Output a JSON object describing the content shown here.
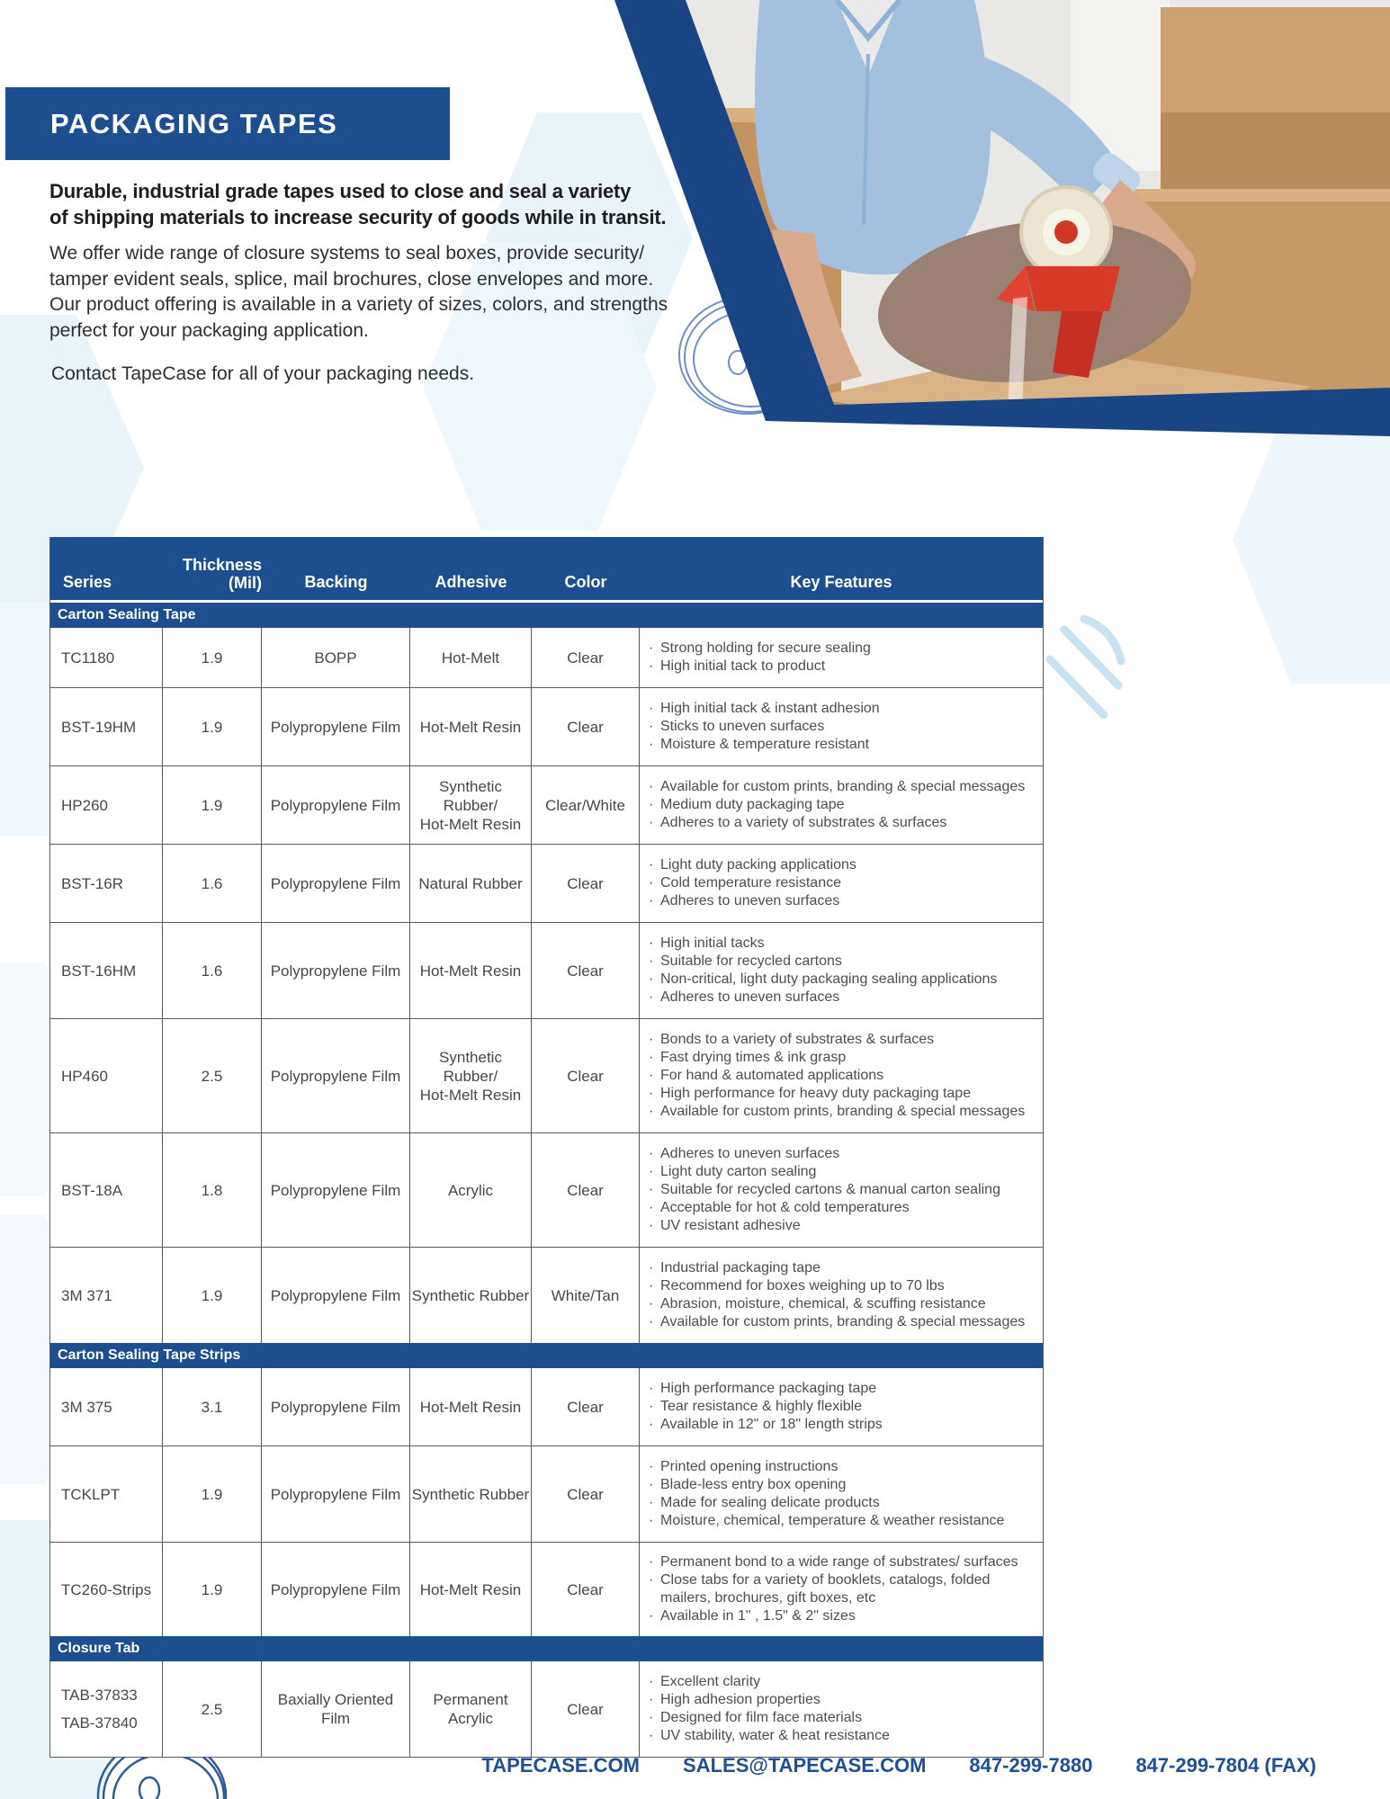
{
  "banner": {
    "title": "PACKAGING TAPES"
  },
  "intro": {
    "bold_lines": [
      "Durable, industrial grade tapes used to close and seal a variety",
      "of shipping materials to increase security of goods while in transit."
    ],
    "body_lines": [
      "We offer wide range of closure systems to seal boxes, provide security/",
      "tamper evident seals, splice, mail brochures, close envelopes and more.",
      "Our product offering is available in a variety of sizes, colors, and strengths",
      "perfect for your packaging application."
    ],
    "contact": "Contact TapeCase for all of your packaging needs."
  },
  "table": {
    "columns": {
      "series": "Series",
      "thickness_line1": "Thickness",
      "thickness_line2": "(Mil)",
      "backing": "Backing",
      "adhesive": "Adhesive",
      "color": "Color",
      "features": "Key Features"
    },
    "sections": [
      {
        "label": "Carton Sealing Tape",
        "rows": [
          {
            "series": [
              "TC1180"
            ],
            "thickness": "1.9",
            "backing": "BOPP",
            "adhesive": [
              "Hot-Melt"
            ],
            "color": "Clear",
            "features": [
              "Strong holding for secure sealing",
              "High initial tack to product"
            ]
          },
          {
            "series": [
              "BST-19HM"
            ],
            "thickness": "1.9",
            "backing": "Polypropylene Film",
            "adhesive": [
              "Hot-Melt Resin"
            ],
            "color": "Clear",
            "features": [
              "High initial tack & instant adhesion",
              "Sticks to uneven surfaces",
              "Moisture & temperature resistant"
            ]
          },
          {
            "series": [
              "HP260"
            ],
            "thickness": "1.9",
            "backing": "Polypropylene Film",
            "adhesive": [
              "Synthetic Rubber/",
              "Hot-Melt Resin"
            ],
            "color": "Clear/White",
            "features": [
              "Available for custom prints, branding & special messages",
              "Medium duty packaging tape",
              "Adheres to a variety of substrates & surfaces"
            ]
          },
          {
            "series": [
              "BST-16R"
            ],
            "thickness": "1.6",
            "backing": "Polypropylene Film",
            "adhesive": [
              "Natural Rubber"
            ],
            "color": "Clear",
            "features": [
              "Light duty packing applications",
              "Cold temperature resistance",
              "Adheres to uneven surfaces"
            ]
          },
          {
            "series": [
              "BST-16HM"
            ],
            "thickness": "1.6",
            "backing": "Polypropylene Film",
            "adhesive": [
              "Hot-Melt Resin"
            ],
            "color": "Clear",
            "features": [
              "High initial tacks",
              "Suitable for recycled cartons",
              "Non-critical, light duty packaging sealing applications",
              "Adheres to uneven surfaces"
            ]
          },
          {
            "series": [
              "HP460"
            ],
            "thickness": "2.5",
            "backing": "Polypropylene Film",
            "adhesive": [
              "Synthetic Rubber/",
              "Hot-Melt Resin"
            ],
            "color": "Clear",
            "features": [
              "Bonds to a variety of substrates & surfaces",
              "Fast drying times & ink grasp",
              "For hand & automated applications",
              "High performance for heavy duty packaging tape",
              "Available for custom prints, branding & special messages"
            ]
          },
          {
            "series": [
              "BST-18A"
            ],
            "thickness": "1.8",
            "backing": "Polypropylene Film",
            "adhesive": [
              "Acrylic"
            ],
            "color": "Clear",
            "features": [
              "Adheres to uneven surfaces",
              "Light duty carton sealing",
              "Suitable for recycled cartons & manual carton sealing",
              "Acceptable for hot & cold temperatures",
              "UV resistant adhesive"
            ]
          },
          {
            "series": [
              "3M 371"
            ],
            "thickness": "1.9",
            "backing": "Polypropylene Film",
            "adhesive": [
              "Synthetic Rubber"
            ],
            "color": "White/Tan",
            "features": [
              "Industrial packaging tape",
              "Recommend for boxes weighing up to 70 lbs",
              "Abrasion, moisture, chemical, & scuffing resistance",
              "Available for custom prints, branding & special messages"
            ]
          }
        ]
      },
      {
        "label": "Carton Sealing Tape Strips",
        "rows": [
          {
            "series": [
              "3M 375"
            ],
            "thickness": "3.1",
            "backing": "Polypropylene Film",
            "adhesive": [
              "Hot-Melt Resin"
            ],
            "color": "Clear",
            "features": [
              "High performance packaging tape",
              "Tear resistance & highly flexible",
              "Available in 12\" or 18\" length strips"
            ]
          },
          {
            "series": [
              "TCKLPT"
            ],
            "thickness": "1.9",
            "backing": "Polypropylene Film",
            "adhesive": [
              "Synthetic Rubber"
            ],
            "color": "Clear",
            "features": [
              "Printed opening instructions",
              "Blade-less entry box opening",
              "Made for sealing delicate products",
              "Moisture, chemical, temperature & weather resistance"
            ]
          },
          {
            "series": [
              "TC260-Strips"
            ],
            "thickness": "1.9",
            "backing": "Polypropylene Film",
            "adhesive": [
              "Hot-Melt Resin"
            ],
            "color": "Clear",
            "features": [
              "Permanent bond to a wide range of substrates/ surfaces",
              "Close tabs for a variety of booklets, catalogs, folded mailers, brochures, gift boxes, etc",
              "Available in 1\" , 1.5\" & 2\" sizes"
            ]
          }
        ]
      },
      {
        "label": "Closure Tab",
        "rows": [
          {
            "series": [
              "TAB-37833",
              "TAB-37840"
            ],
            "thickness": "2.5",
            "backing": "Baxially Oriented Film",
            "adhesive": [
              "Permanent Acrylic"
            ],
            "color": "Clear",
            "features": [
              "Excellent clarity",
              "High adhesion properties",
              "Designed for film face materials",
              "UV stability, water & heat resistance"
            ]
          }
        ]
      }
    ]
  },
  "footer": {
    "website": "TAPECASE.COM",
    "email": "SALES@TAPECASE.COM",
    "phone": "847-299-7880",
    "fax": "847-299-7804 (FAX)"
  },
  "colors": {
    "primary_blue": "#1d4e8f",
    "band_blue": "#1a4585",
    "footer_blue": "#1e4f96",
    "hexagon_light": "#e9f4fb",
    "line_art_blue": "#6e8fc6"
  }
}
